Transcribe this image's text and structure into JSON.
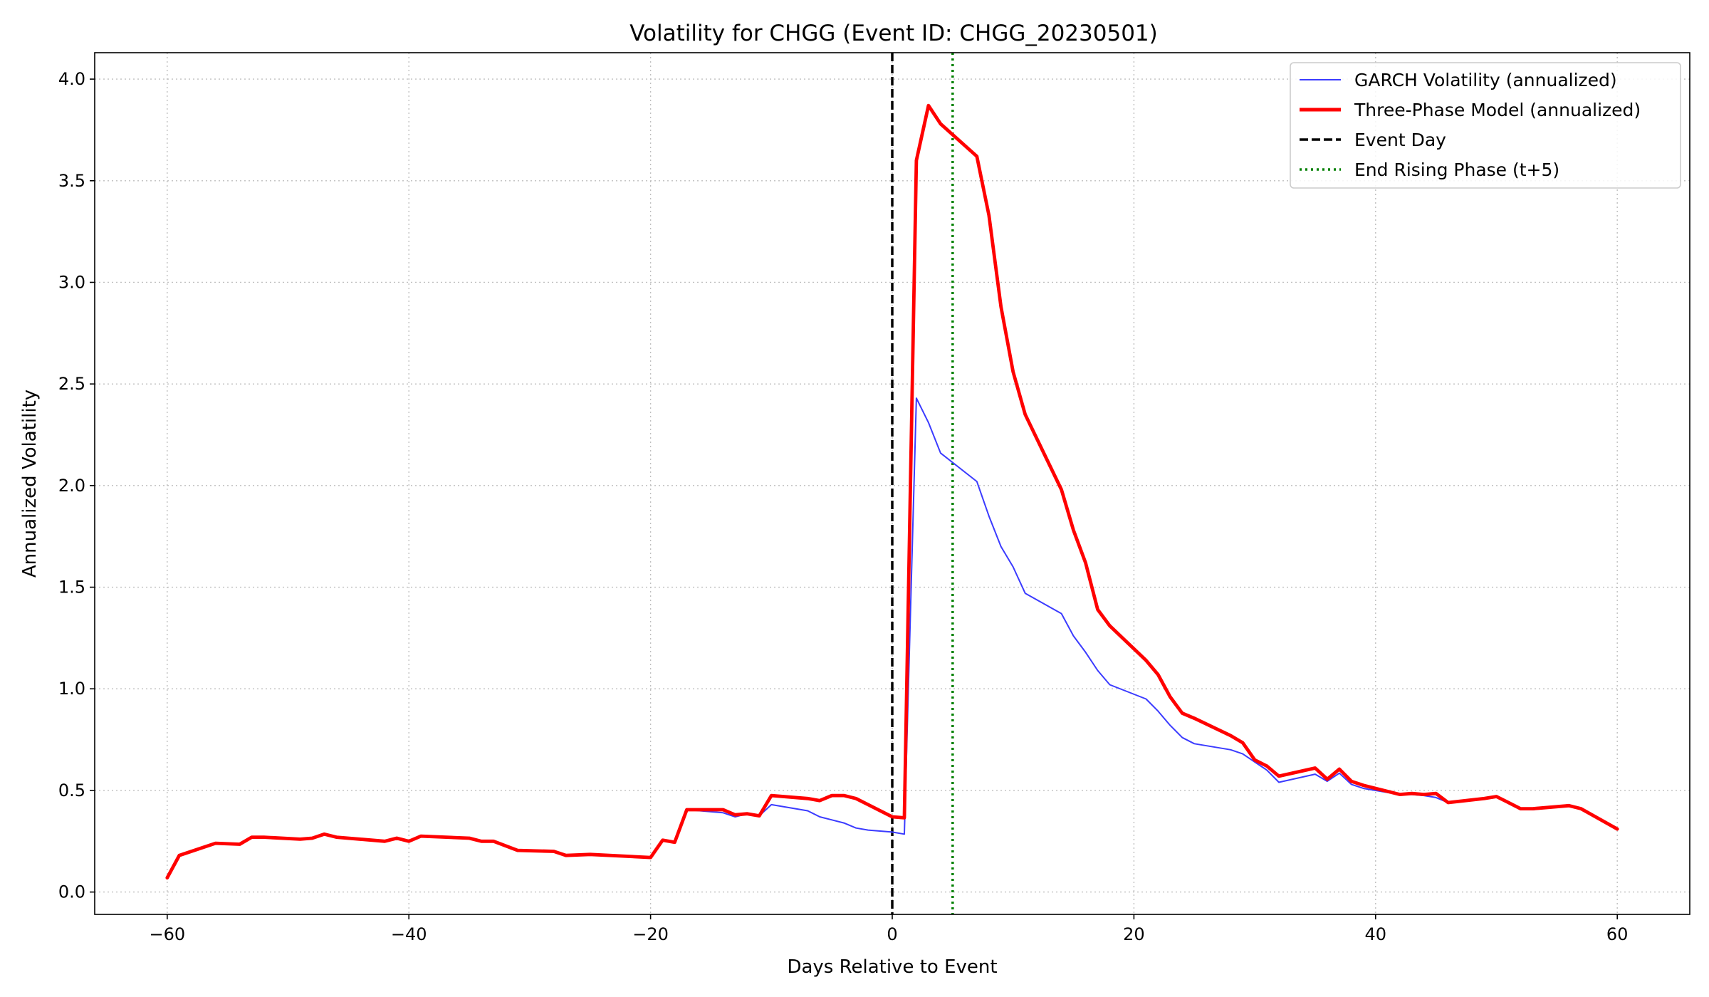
{
  "chart_data": {
    "type": "line",
    "title": "Volatility for CHGG (Event ID: CHGG_20230501)",
    "xlabel": "Days Relative to Event",
    "ylabel": "Annualized Volatility",
    "xlim": [
      -66,
      66
    ],
    "ylim": [
      -0.11,
      4.13
    ],
    "xticks": [
      -60,
      -40,
      -20,
      0,
      20,
      40,
      60
    ],
    "xtick_labels": [
      "−60",
      "−40",
      "−20",
      "0",
      "20",
      "40",
      "60"
    ],
    "yticks": [
      0.0,
      0.5,
      1.0,
      1.5,
      2.0,
      2.5,
      3.0,
      3.5,
      4.0
    ],
    "ytick_labels": [
      "0.0",
      "0.5",
      "1.0",
      "1.5",
      "2.0",
      "2.5",
      "3.0",
      "3.5",
      "4.0"
    ],
    "grid": true,
    "legend_position": "top-right",
    "series": [
      {
        "name": "GARCH Volatility (annualized)",
        "color": "#3b3bff",
        "style": "thin",
        "x": [
          -60,
          -59,
          -56,
          -54,
          -53,
          -52,
          -49,
          -48,
          -47,
          -46,
          -42,
          -41,
          -40,
          -39,
          -35,
          -34,
          -33,
          -31,
          -28,
          -27,
          -25,
          -20,
          -19,
          -18,
          -17,
          -14,
          -13,
          -12,
          -11,
          -10,
          -7,
          -6,
          -5,
          -4,
          -3,
          -2,
          0,
          1,
          2,
          3,
          4,
          7,
          8,
          9,
          10,
          11,
          14,
          15,
          16,
          17,
          18,
          21,
          22,
          23,
          24,
          25,
          28,
          29,
          30,
          31,
          32,
          35,
          36,
          37,
          38,
          39,
          42,
          43,
          44,
          45,
          46,
          49,
          50,
          51,
          52,
          53,
          56,
          57,
          60
        ],
        "y": [
          0.07,
          0.18,
          0.24,
          0.235,
          0.27,
          0.27,
          0.26,
          0.265,
          0.285,
          0.27,
          0.25,
          0.265,
          0.25,
          0.275,
          0.265,
          0.25,
          0.25,
          0.205,
          0.2,
          0.18,
          0.185,
          0.17,
          0.255,
          0.245,
          0.405,
          0.39,
          0.37,
          0.385,
          0.375,
          0.43,
          0.4,
          0.37,
          0.355,
          0.34,
          0.315,
          0.305,
          0.295,
          0.285,
          2.43,
          2.31,
          2.16,
          2.02,
          1.85,
          1.7,
          1.6,
          1.47,
          1.37,
          1.26,
          1.18,
          1.09,
          1.02,
          0.95,
          0.89,
          0.82,
          0.76,
          0.73,
          0.7,
          0.68,
          0.64,
          0.6,
          0.54,
          0.58,
          0.545,
          0.585,
          0.53,
          0.51,
          0.48,
          0.48,
          0.475,
          0.465,
          0.44,
          0.46,
          0.47,
          0.435,
          0.405,
          0.405,
          0.43,
          0.41,
          0.31
        ]
      },
      {
        "name": "Three-Phase Model (annualized)",
        "color": "#ff0000",
        "style": "thick",
        "x": [
          -60,
          -59,
          -56,
          -54,
          -53,
          -52,
          -49,
          -48,
          -47,
          -46,
          -42,
          -41,
          -40,
          -39,
          -35,
          -34,
          -33,
          -31,
          -28,
          -27,
          -25,
          -20,
          -19,
          -18,
          -17,
          -14,
          -13,
          -12,
          -11,
          -10,
          -7,
          -6,
          -5,
          -4,
          -3,
          -2,
          0,
          1,
          2,
          3,
          4,
          7,
          8,
          9,
          10,
          11,
          14,
          15,
          16,
          17,
          18,
          21,
          22,
          23,
          24,
          25,
          28,
          29,
          30,
          31,
          32,
          35,
          36,
          37,
          38,
          39,
          42,
          43,
          44,
          45,
          46,
          49,
          50,
          51,
          52,
          53,
          56,
          57,
          60
        ],
        "y": [
          0.07,
          0.18,
          0.24,
          0.235,
          0.27,
          0.27,
          0.26,
          0.265,
          0.285,
          0.27,
          0.25,
          0.265,
          0.25,
          0.275,
          0.265,
          0.25,
          0.25,
          0.205,
          0.2,
          0.18,
          0.185,
          0.17,
          0.255,
          0.245,
          0.405,
          0.405,
          0.38,
          0.385,
          0.375,
          0.475,
          0.46,
          0.45,
          0.475,
          0.475,
          0.46,
          0.43,
          0.37,
          0.365,
          3.6,
          3.87,
          3.78,
          3.62,
          3.33,
          2.88,
          2.56,
          2.35,
          1.98,
          1.78,
          1.62,
          1.39,
          1.31,
          1.14,
          1.07,
          0.96,
          0.88,
          0.855,
          0.77,
          0.735,
          0.65,
          0.62,
          0.57,
          0.61,
          0.555,
          0.605,
          0.545,
          0.525,
          0.48,
          0.485,
          0.48,
          0.485,
          0.44,
          0.46,
          0.47,
          0.44,
          0.41,
          0.41,
          0.425,
          0.41,
          0.31
        ]
      }
    ],
    "reference_lines": [
      {
        "name": "Event Day",
        "x": 0,
        "color": "#000000",
        "style": "dashed"
      },
      {
        "name": "End Rising Phase (t+5)",
        "x": 5,
        "color": "#008000",
        "style": "dotted"
      }
    ]
  }
}
